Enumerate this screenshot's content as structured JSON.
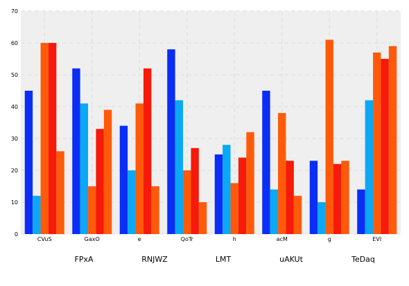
{
  "chart_data": {
    "type": "bar",
    "title": "",
    "xlabel": "",
    "ylabel": "",
    "ylim": [
      0,
      70
    ],
    "yticks": [
      0,
      10,
      20,
      30,
      40,
      50,
      60,
      70
    ],
    "grid": true,
    "legend_position": "bottom",
    "categories": [
      "CVuS",
      "GaxO",
      "e",
      "QoTr",
      "h",
      "acM",
      "g",
      "EVI"
    ],
    "series": [
      {
        "name": "",
        "color": "#0a2ef5",
        "values": [
          45,
          52,
          34,
          58,
          25,
          45,
          23,
          14
        ]
      },
      {
        "name": "",
        "color": "#0aa8f5",
        "values": [
          12,
          41,
          20,
          42,
          28,
          14,
          10,
          42
        ]
      },
      {
        "name": "FPxA",
        "color": "#ff5a0a",
        "values": [
          60,
          15,
          41,
          20,
          16,
          38,
          61,
          57
        ]
      },
      {
        "name": "RNJWZ",
        "color": "#f51a0a",
        "values": [
          60,
          33,
          52,
          27,
          24,
          23,
          22,
          55
        ]
      },
      {
        "name": "LMT",
        "color": "#ff5a0a",
        "values": [
          26,
          39,
          15,
          10,
          32,
          12,
          23,
          59
        ]
      }
    ],
    "legend_entries": [
      "FPxA",
      "RNJWZ",
      "LMT",
      "uAKUt",
      "TeDaq"
    ],
    "colors": {
      "plot_background": "#efefef",
      "grid": "#dddddd"
    }
  }
}
